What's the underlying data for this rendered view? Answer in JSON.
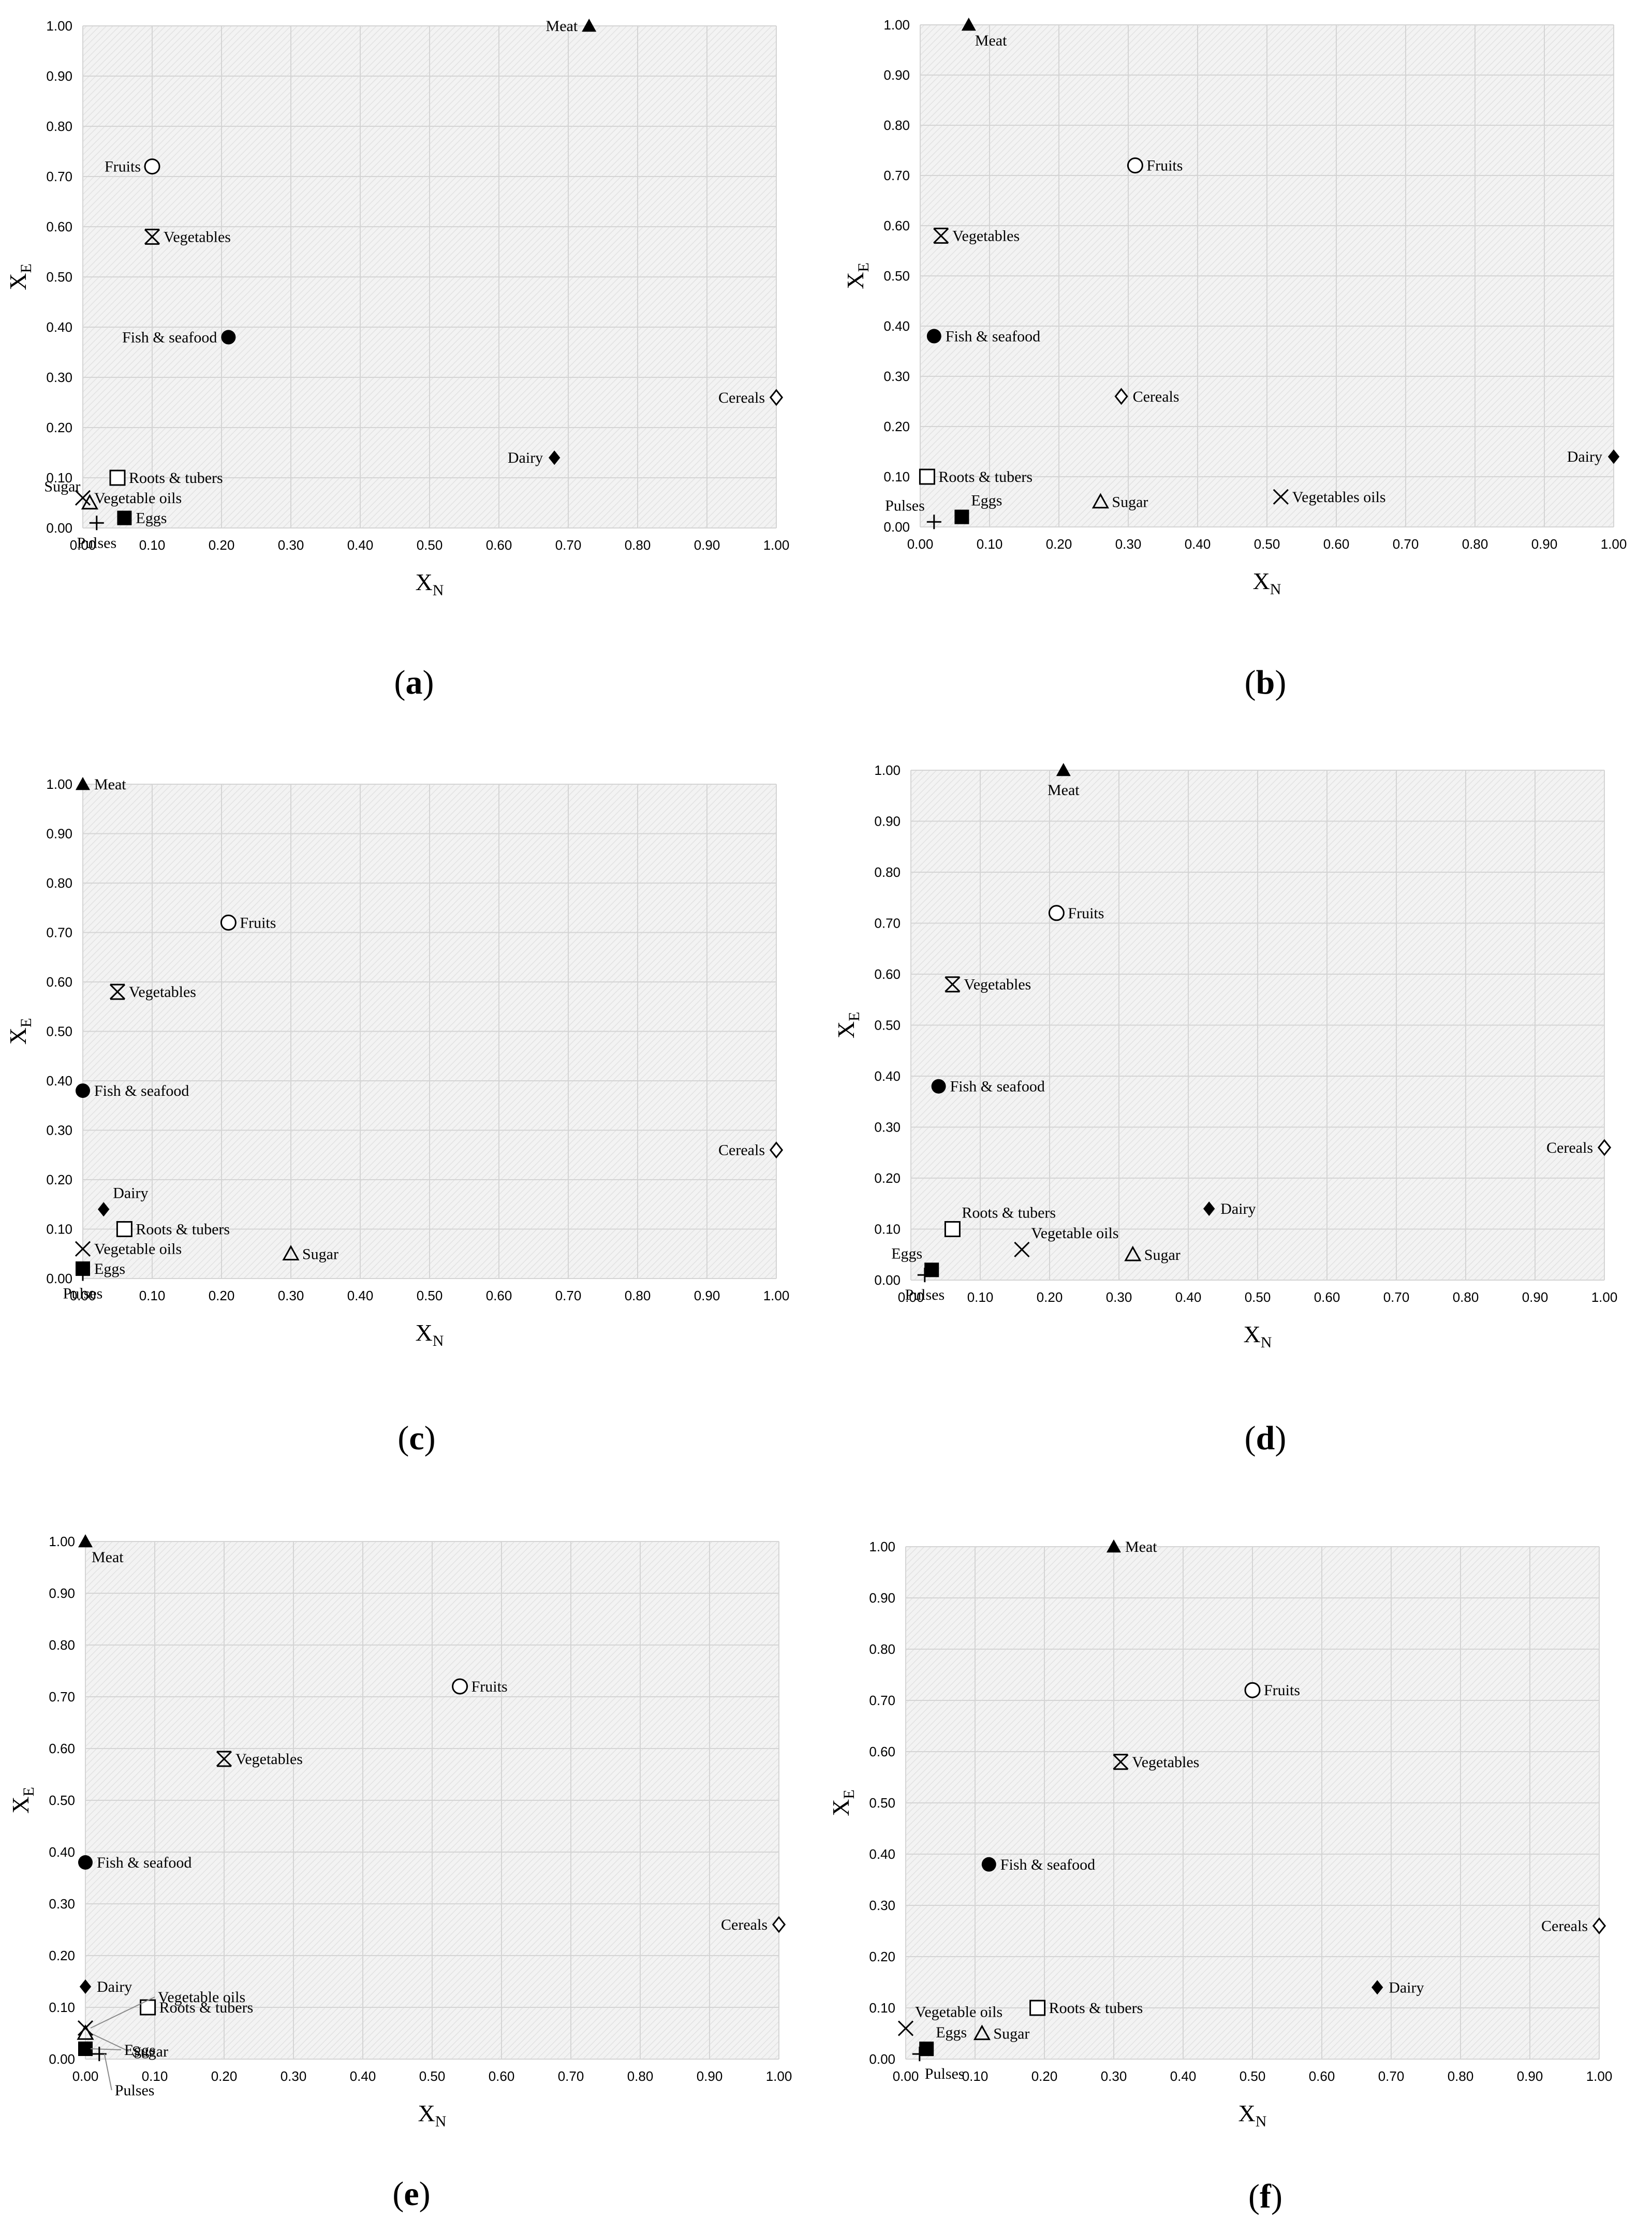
{
  "chart_data": [
    {
      "type": "scatter",
      "caption": "a",
      "xlabel": "X",
      "xlabel_sub": "N",
      "ylabel": "X",
      "ylabel_sub": "E",
      "xlim": [
        0,
        1
      ],
      "ylim": [
        0,
        1
      ],
      "x_ticks": [
        "0.00",
        "0.10",
        "0.20",
        "0.30",
        "0.40",
        "0.50",
        "0.60",
        "0.70",
        "0.80",
        "0.90",
        "1.00"
      ],
      "y_ticks": [
        "0.00",
        "0.10",
        "0.20",
        "0.30",
        "0.40",
        "0.50",
        "0.60",
        "0.70",
        "0.80",
        "0.90",
        "1.00"
      ],
      "grid": true,
      "points": [
        {
          "name": "Meat",
          "x": 0.73,
          "y": 1.0,
          "marker": "triangle-filled",
          "label_pos": "left"
        },
        {
          "name": "Fruits",
          "x": 0.1,
          "y": 0.72,
          "marker": "circle-open",
          "label_pos": "left"
        },
        {
          "name": "Vegetables",
          "x": 0.1,
          "y": 0.58,
          "marker": "asterisk",
          "label_pos": "right"
        },
        {
          "name": "Fish & seafood",
          "x": 0.21,
          "y": 0.38,
          "marker": "circle-filled",
          "label_pos": "left"
        },
        {
          "name": "Cereals",
          "x": 1.0,
          "y": 0.26,
          "marker": "diamond-open",
          "label_pos": "left"
        },
        {
          "name": "Dairy",
          "x": 0.68,
          "y": 0.14,
          "marker": "diamond-filled",
          "label_pos": "left"
        },
        {
          "name": "Roots & tubers",
          "x": 0.05,
          "y": 0.1,
          "marker": "square-open",
          "label_pos": "right"
        },
        {
          "name": "Sugar",
          "x": 0.01,
          "y": 0.05,
          "marker": "triangle-open",
          "label_pos": "upper-left"
        },
        {
          "name": "Vegetable oils",
          "x": 0.0,
          "y": 0.06,
          "marker": "cross",
          "label_pos": "right"
        },
        {
          "name": "Eggs",
          "x": 0.06,
          "y": 0.02,
          "marker": "square-filled",
          "label_pos": "right"
        },
        {
          "name": "Pulses",
          "x": 0.02,
          "y": 0.01,
          "marker": "plus",
          "label_pos": "below"
        }
      ]
    },
    {
      "type": "scatter",
      "caption": "b",
      "xlabel": "X",
      "xlabel_sub": "N",
      "ylabel": "X",
      "ylabel_sub": "E",
      "xlim": [
        0,
        1
      ],
      "ylim": [
        0,
        1
      ],
      "x_ticks": [
        "0.00",
        "0.10",
        "0.20",
        "0.30",
        "0.40",
        "0.50",
        "0.60",
        "0.70",
        "0.80",
        "0.90",
        "1.00"
      ],
      "y_ticks": [
        "0.00",
        "0.10",
        "0.20",
        "0.30",
        "0.40",
        "0.50",
        "0.60",
        "0.70",
        "0.80",
        "0.90",
        "1.00"
      ],
      "grid": true,
      "points": [
        {
          "name": "Meat",
          "x": 0.07,
          "y": 1.0,
          "marker": "triangle-filled",
          "label_pos": "lower-right"
        },
        {
          "name": "Fruits",
          "x": 0.31,
          "y": 0.72,
          "marker": "circle-open",
          "label_pos": "right"
        },
        {
          "name": "Vegetables",
          "x": 0.03,
          "y": 0.58,
          "marker": "asterisk",
          "label_pos": "right"
        },
        {
          "name": "Fish & seafood",
          "x": 0.02,
          "y": 0.38,
          "marker": "circle-filled",
          "label_pos": "right"
        },
        {
          "name": "Cereals",
          "x": 0.29,
          "y": 0.26,
          "marker": "diamond-open",
          "label_pos": "right"
        },
        {
          "name": "Dairy",
          "x": 1.0,
          "y": 0.14,
          "marker": "diamond-filled",
          "label_pos": "left"
        },
        {
          "name": "Roots & tubers",
          "x": 0.01,
          "y": 0.1,
          "marker": "square-open",
          "label_pos": "right"
        },
        {
          "name": "Sugar",
          "x": 0.26,
          "y": 0.05,
          "marker": "triangle-open",
          "label_pos": "right"
        },
        {
          "name": "Vegetables oils",
          "x": 0.52,
          "y": 0.06,
          "marker": "cross",
          "label_pos": "right"
        },
        {
          "name": "Eggs",
          "x": 0.06,
          "y": 0.02,
          "marker": "square-filled",
          "label_pos": "upper-right"
        },
        {
          "name": "Pulses",
          "x": 0.02,
          "y": 0.01,
          "marker": "plus",
          "label_pos": "upper-left"
        }
      ]
    },
    {
      "type": "scatter",
      "caption": "c",
      "xlabel": "X",
      "xlabel_sub": "N",
      "ylabel": "X",
      "ylabel_sub": "E",
      "xlim": [
        0,
        1
      ],
      "ylim": [
        0,
        1
      ],
      "x_ticks": [
        "0.00",
        "0.10",
        "0.20",
        "0.30",
        "0.40",
        "0.50",
        "0.60",
        "0.70",
        "0.80",
        "0.90",
        "1.00"
      ],
      "y_ticks": [
        "0.00",
        "0.10",
        "0.20",
        "0.30",
        "0.40",
        "0.50",
        "0.60",
        "0.70",
        "0.80",
        "0.90",
        "1.00"
      ],
      "grid": true,
      "points": [
        {
          "name": "Meat",
          "x": 0.0,
          "y": 1.0,
          "marker": "triangle-filled",
          "label_pos": "right"
        },
        {
          "name": "Fruits",
          "x": 0.21,
          "y": 0.72,
          "marker": "circle-open",
          "label_pos": "right"
        },
        {
          "name": "Vegetables",
          "x": 0.05,
          "y": 0.58,
          "marker": "asterisk",
          "label_pos": "right"
        },
        {
          "name": "Fish & seafood",
          "x": 0.0,
          "y": 0.38,
          "marker": "circle-filled",
          "label_pos": "right"
        },
        {
          "name": "Cereals",
          "x": 1.0,
          "y": 0.26,
          "marker": "diamond-open",
          "label_pos": "left"
        },
        {
          "name": "Dairy",
          "x": 0.03,
          "y": 0.14,
          "marker": "diamond-filled",
          "label_pos": "upper-right"
        },
        {
          "name": "Roots & tubers",
          "x": 0.06,
          "y": 0.1,
          "marker": "square-open",
          "label_pos": "right"
        },
        {
          "name": "Sugar",
          "x": 0.3,
          "y": 0.05,
          "marker": "triangle-open",
          "label_pos": "right"
        },
        {
          "name": "Vegetable oils",
          "x": 0.0,
          "y": 0.06,
          "marker": "cross",
          "label_pos": "right"
        },
        {
          "name": "Eggs",
          "x": 0.0,
          "y": 0.02,
          "marker": "square-filled",
          "label_pos": "right"
        },
        {
          "name": "Pulses",
          "x": 0.0,
          "y": 0.01,
          "marker": "plus",
          "label_pos": "below"
        }
      ]
    },
    {
      "type": "scatter",
      "caption": "d",
      "xlabel": "X",
      "xlabel_sub": "N",
      "ylabel": "X",
      "ylabel_sub": "E",
      "xlim": [
        0,
        1
      ],
      "ylim": [
        0,
        1
      ],
      "x_ticks": [
        "0.00",
        "0.10",
        "0.20",
        "0.30",
        "0.40",
        "0.50",
        "0.60",
        "0.70",
        "0.80",
        "0.90",
        "1.00"
      ],
      "y_ticks": [
        "0.00",
        "0.10",
        "0.20",
        "0.30",
        "0.40",
        "0.50",
        "0.60",
        "0.70",
        "0.80",
        "0.90",
        "1.00"
      ],
      "grid": true,
      "points": [
        {
          "name": "Meat",
          "x": 0.22,
          "y": 1.0,
          "marker": "triangle-filled",
          "label_pos": "below"
        },
        {
          "name": "Fruits",
          "x": 0.21,
          "y": 0.72,
          "marker": "circle-open",
          "label_pos": "right"
        },
        {
          "name": "Vegetables",
          "x": 0.06,
          "y": 0.58,
          "marker": "asterisk",
          "label_pos": "right"
        },
        {
          "name": "Fish & seafood",
          "x": 0.04,
          "y": 0.38,
          "marker": "circle-filled",
          "label_pos": "right"
        },
        {
          "name": "Cereals",
          "x": 1.0,
          "y": 0.26,
          "marker": "diamond-open",
          "label_pos": "left"
        },
        {
          "name": "Dairy",
          "x": 0.43,
          "y": 0.14,
          "marker": "diamond-filled",
          "label_pos": "right"
        },
        {
          "name": "Roots & tubers",
          "x": 0.06,
          "y": 0.1,
          "marker": "square-open",
          "label_pos": "upper-right"
        },
        {
          "name": "Sugar",
          "x": 0.32,
          "y": 0.05,
          "marker": "triangle-open",
          "label_pos": "right"
        },
        {
          "name": "Vegetable oils",
          "x": 0.16,
          "y": 0.06,
          "marker": "cross",
          "label_pos": "upper-right"
        },
        {
          "name": "Eggs",
          "x": 0.03,
          "y": 0.02,
          "marker": "square-filled",
          "label_pos": "upper-left"
        },
        {
          "name": "Pulses",
          "x": 0.02,
          "y": 0.01,
          "marker": "plus",
          "label_pos": "below"
        }
      ]
    },
    {
      "type": "scatter",
      "caption": "e",
      "xlabel": "X",
      "xlabel_sub": "N",
      "ylabel": "X",
      "ylabel_sub": "E",
      "xlim": [
        0,
        1
      ],
      "ylim": [
        0,
        1
      ],
      "x_ticks": [
        "0.00",
        "0.10",
        "0.20",
        "0.30",
        "0.40",
        "0.50",
        "0.60",
        "0.70",
        "0.80",
        "0.90",
        "1.00"
      ],
      "y_ticks": [
        "0.00",
        "0.10",
        "0.20",
        "0.30",
        "0.40",
        "0.50",
        "0.60",
        "0.70",
        "0.80",
        "0.90",
        "1.00"
      ],
      "grid": true,
      "points": [
        {
          "name": "Meat",
          "x": 0.0,
          "y": 1.0,
          "marker": "triangle-filled",
          "label_pos": "lower-right"
        },
        {
          "name": "Fruits",
          "x": 0.54,
          "y": 0.72,
          "marker": "circle-open",
          "label_pos": "right"
        },
        {
          "name": "Vegetables",
          "x": 0.2,
          "y": 0.58,
          "marker": "asterisk",
          "label_pos": "right"
        },
        {
          "name": "Fish & seafood",
          "x": 0.0,
          "y": 0.38,
          "marker": "circle-filled",
          "label_pos": "right"
        },
        {
          "name": "Cereals",
          "x": 1.0,
          "y": 0.26,
          "marker": "diamond-open",
          "label_pos": "left"
        },
        {
          "name": "Dairy",
          "x": 0.0,
          "y": 0.14,
          "marker": "diamond-filled",
          "label_pos": "right"
        },
        {
          "name": "Roots & tubers",
          "x": 0.09,
          "y": 0.1,
          "marker": "square-open",
          "label_pos": "right"
        },
        {
          "name": "Sugar",
          "x": 0.0,
          "y": 0.05,
          "marker": "triangle-open",
          "label_pos": "leader-lower-right"
        },
        {
          "name": "Vegetable oils",
          "x": 0.0,
          "y": 0.06,
          "marker": "cross",
          "label_pos": "leader-upper-right"
        },
        {
          "name": "Eggs",
          "x": 0.0,
          "y": 0.02,
          "marker": "square-filled",
          "label_pos": "leader-right"
        },
        {
          "name": "Pulses",
          "x": 0.02,
          "y": 0.01,
          "marker": "plus",
          "label_pos": "leader-below"
        }
      ]
    },
    {
      "type": "scatter",
      "caption": "f",
      "xlabel": "X",
      "xlabel_sub": "N",
      "ylabel": "X",
      "ylabel_sub": "E",
      "xlim": [
        0,
        1
      ],
      "ylim": [
        0,
        1
      ],
      "x_ticks": [
        "0.00",
        "0.10",
        "0.20",
        "0.30",
        "0.40",
        "0.50",
        "0.60",
        "0.70",
        "0.80",
        "0.90",
        "1.00"
      ],
      "y_ticks": [
        "0.00",
        "0.10",
        "0.20",
        "0.30",
        "0.40",
        "0.50",
        "0.60",
        "0.70",
        "0.80",
        "0.90",
        "1.00"
      ],
      "grid": true,
      "points": [
        {
          "name": "Meat",
          "x": 0.3,
          "y": 1.0,
          "marker": "triangle-filled",
          "label_pos": "right"
        },
        {
          "name": "Fruits",
          "x": 0.5,
          "y": 0.72,
          "marker": "circle-open",
          "label_pos": "right"
        },
        {
          "name": "Vegetables",
          "x": 0.31,
          "y": 0.58,
          "marker": "asterisk",
          "label_pos": "right"
        },
        {
          "name": "Fish & seafood",
          "x": 0.12,
          "y": 0.38,
          "marker": "circle-filled",
          "label_pos": "right"
        },
        {
          "name": "Cereals",
          "x": 1.0,
          "y": 0.26,
          "marker": "diamond-open",
          "label_pos": "left"
        },
        {
          "name": "Dairy",
          "x": 0.68,
          "y": 0.14,
          "marker": "diamond-filled",
          "label_pos": "right"
        },
        {
          "name": "Roots & tubers",
          "x": 0.19,
          "y": 0.1,
          "marker": "square-open",
          "label_pos": "right"
        },
        {
          "name": "Sugar",
          "x": 0.11,
          "y": 0.05,
          "marker": "triangle-open",
          "label_pos": "right"
        },
        {
          "name": "Vegetable oils",
          "x": 0.0,
          "y": 0.06,
          "marker": "cross",
          "label_pos": "upper-right"
        },
        {
          "name": "Eggs",
          "x": 0.03,
          "y": 0.02,
          "marker": "square-filled",
          "label_pos": "upper-right"
        },
        {
          "name": "Pulses",
          "x": 0.02,
          "y": 0.01,
          "marker": "plus",
          "label_pos": "below-right"
        }
      ]
    }
  ]
}
